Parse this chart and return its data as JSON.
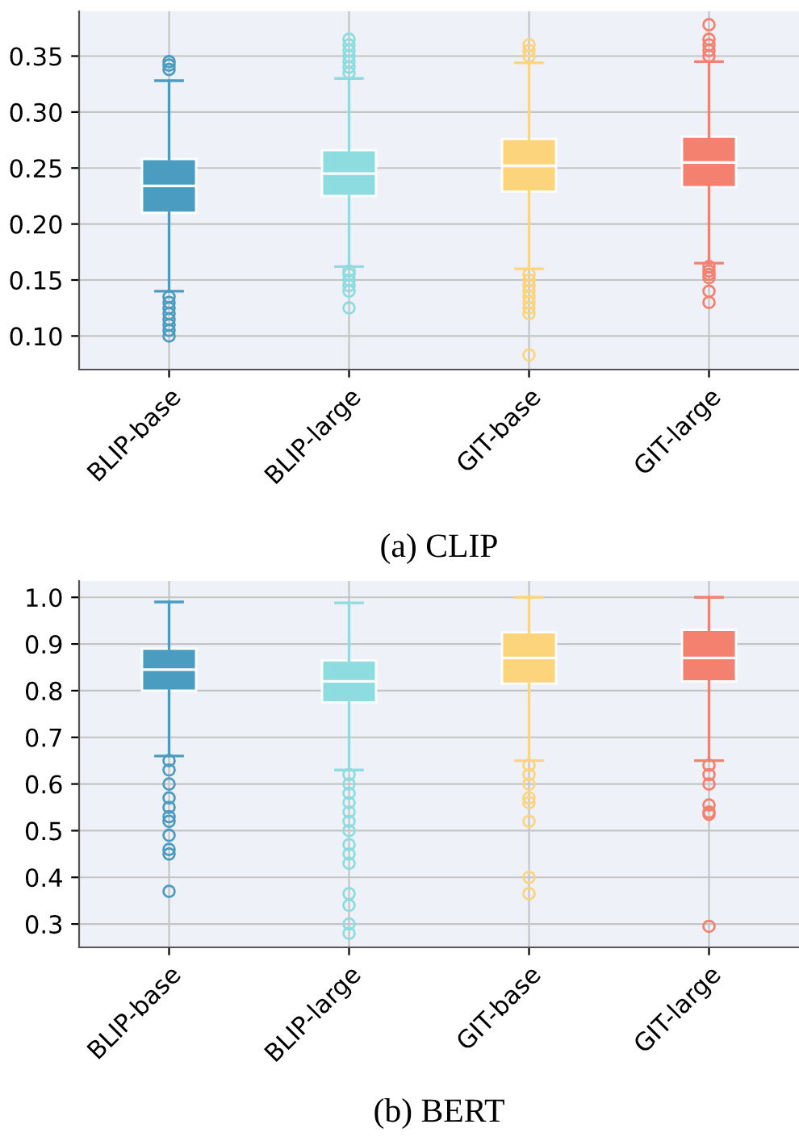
{
  "chart_data": [
    {
      "type": "box",
      "title": "(a) CLIP",
      "categories": [
        "BLIP-base",
        "BLIP-large",
        "GIT-base",
        "GIT-large"
      ],
      "colors": [
        "#4a9cc0",
        "#8ddde0",
        "#fcd47c",
        "#f4806f"
      ],
      "ylim": [
        0.07,
        0.39
      ],
      "yticks": [
        {
          "value": 0.1,
          "label": "0.10"
        },
        0.15,
        {
          "value": 0.2,
          "label": "0.20"
        },
        0.25,
        {
          "value": 0.3,
          "label": "0.30"
        },
        0.35
      ],
      "grid": true,
      "boxes": [
        {
          "low": 0.14,
          "q1": 0.21,
          "median": 0.234,
          "q3": 0.258,
          "high": 0.328,
          "outliers": [
            0.345,
            0.342,
            0.338,
            0.135,
            0.13,
            0.125,
            0.12,
            0.115,
            0.11,
            0.105,
            0.1
          ]
        },
        {
          "low": 0.162,
          "q1": 0.225,
          "median": 0.245,
          "q3": 0.266,
          "high": 0.33,
          "outliers": [
            0.365,
            0.36,
            0.355,
            0.35,
            0.345,
            0.34,
            0.335,
            0.158,
            0.155,
            0.15,
            0.145,
            0.14,
            0.125
          ]
        },
        {
          "low": 0.16,
          "q1": 0.229,
          "median": 0.252,
          "q3": 0.276,
          "high": 0.344,
          "outliers": [
            0.36,
            0.355,
            0.35,
            0.155,
            0.15,
            0.145,
            0.14,
            0.135,
            0.13,
            0.125,
            0.12,
            0.083
          ]
        },
        {
          "low": 0.165,
          "q1": 0.233,
          "median": 0.255,
          "q3": 0.278,
          "high": 0.345,
          "outliers": [
            0.378,
            0.365,
            0.36,
            0.355,
            0.35,
            0.162,
            0.158,
            0.155,
            0.152,
            0.14,
            0.13
          ]
        }
      ]
    },
    {
      "type": "box",
      "title": "(b) BERT",
      "categories": [
        "BLIP-base",
        "BLIP-large",
        "GIT-base",
        "GIT-large"
      ],
      "colors": [
        "#4a9cc0",
        "#8ddde0",
        "#fcd47c",
        "#f4806f"
      ],
      "ylim": [
        0.25,
        1.035
      ],
      "yticks": [
        0.3,
        0.4,
        0.5,
        0.6,
        0.7,
        0.8,
        0.9,
        {
          "value": 1,
          "label": "1.0"
        }
      ],
      "grid": true,
      "boxes": [
        {
          "low": 0.66,
          "q1": 0.8,
          "median": 0.845,
          "q3": 0.89,
          "high": 0.99,
          "outliers": [
            0.65,
            0.63,
            0.6,
            0.57,
            0.55,
            0.53,
            0.52,
            0.49,
            0.46,
            0.45,
            0.37
          ]
        },
        {
          "low": 0.63,
          "q1": 0.775,
          "median": 0.82,
          "q3": 0.865,
          "high": 0.988,
          "outliers": [
            0.62,
            0.6,
            0.58,
            0.56,
            0.54,
            0.52,
            0.5,
            0.47,
            0.45,
            0.43,
            0.365,
            0.34,
            0.3,
            0.28
          ]
        },
        {
          "low": 0.65,
          "q1": 0.815,
          "median": 0.87,
          "q3": 0.925,
          "high": 1.0,
          "outliers": [
            0.64,
            0.62,
            0.6,
            0.57,
            0.56,
            0.52,
            0.4,
            0.365
          ]
        },
        {
          "low": 0.65,
          "q1": 0.82,
          "median": 0.87,
          "q3": 0.93,
          "high": 1.0,
          "outliers": [
            0.64,
            0.62,
            0.6,
            0.555,
            0.54,
            0.535,
            0.295
          ]
        }
      ]
    }
  ]
}
